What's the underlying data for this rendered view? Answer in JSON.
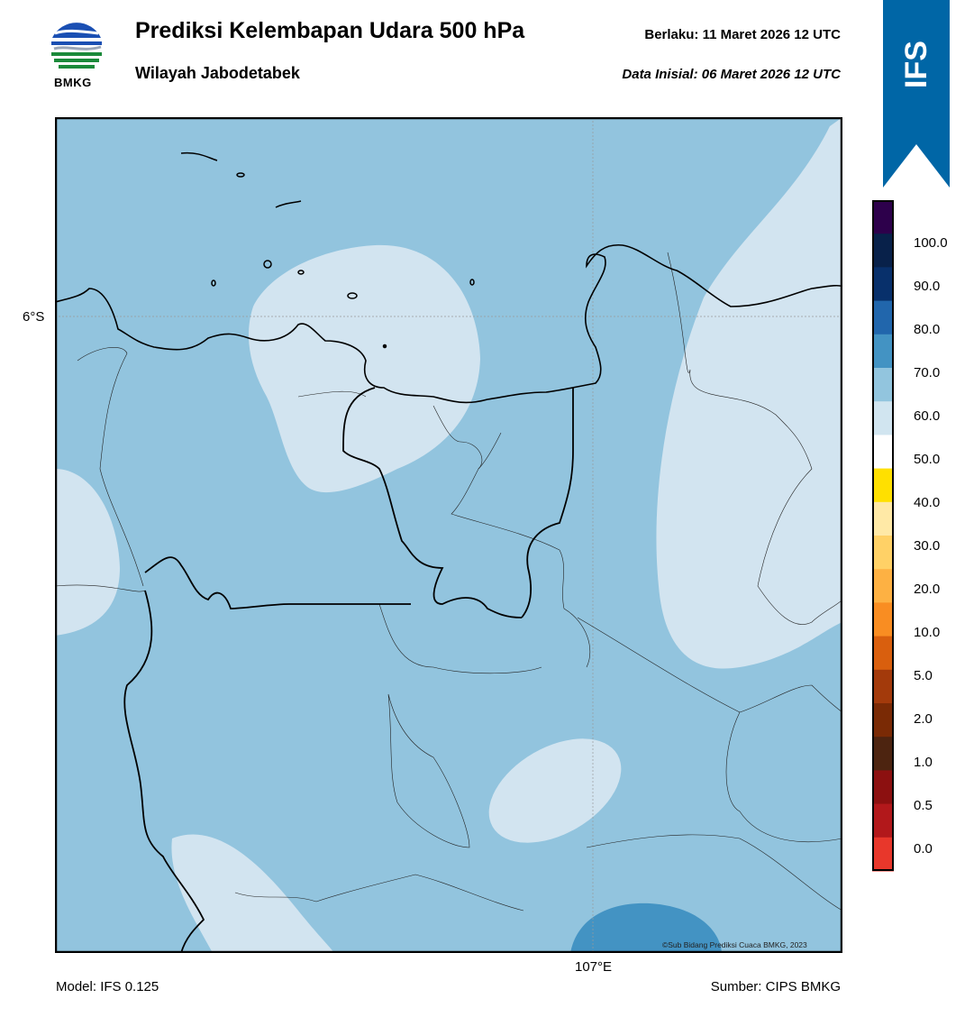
{
  "header": {
    "title": "Prediksi Kelembapan Udara 500 hPa",
    "subtitle": "Wilayah Jabodetabek",
    "valid": "Berlaku:  11 Maret 2026 12 UTC",
    "initial": "Data Inisial:  06 Maret 2026 12 UTC"
  },
  "logo": {
    "text": "BMKG"
  },
  "ribbon": {
    "text": "IFS",
    "color": "#0066a6"
  },
  "map": {
    "lat_label": "6°S",
    "lon_label": "107°E",
    "credit": "©Sub Bidang Prediksi Cuaca BMKG, 2023",
    "field_colors": {
      "50_60": "#d2e4f0",
      "60_70": "#92c4de",
      "70_80": "#4393c3"
    }
  },
  "footer": {
    "model": "Model: IFS 0.125",
    "source": "Sumber: CIPS BMKG"
  },
  "colorbar": {
    "labels": [
      "100.0",
      "90.0",
      "80.0",
      "70.0",
      "60.0",
      "50.0",
      "40.0",
      "30.0",
      "20.0",
      "10.0",
      "5.0",
      "2.0",
      "1.0",
      "0.5",
      "0.0"
    ],
    "colors": [
      "#2d004b",
      "#08214a",
      "#08306b",
      "#2166ac",
      "#4393c3",
      "#92c5de",
      "#d1e5f0",
      "#ffffff",
      "#ffe000",
      "#ffe9a6",
      "#ffd166",
      "#fdb143",
      "#f98d22",
      "#d95f0e",
      "#a33a0b",
      "#7a2a05",
      "#4d2410",
      "#8c1010",
      "#b2181b",
      "#e8372b"
    ]
  }
}
